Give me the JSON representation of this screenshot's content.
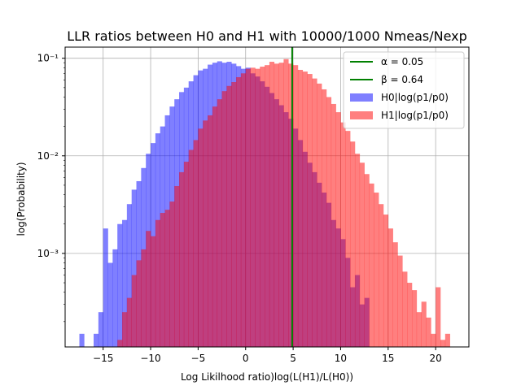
{
  "chart_data": {
    "type": "bar",
    "title": "LLR ratios between H0 and H1 with 10000/1000 Nmeas/Nexp",
    "xlabel": "Log Likilhood ratio)log(L(H1)/L(H0))",
    "ylabel": "log(Probability)",
    "xlim": [
      -19,
      23.5
    ],
    "ylim": [
      0.00011,
      0.13
    ],
    "y_scale": "log",
    "grid": true,
    "legend_position": "upper right",
    "x_ticks": [
      -15,
      -10,
      -5,
      0,
      5,
      10,
      15,
      20
    ],
    "x_tick_labels": [
      "−15",
      "−10",
      "−5",
      "0",
      "5",
      "10",
      "15",
      "20"
    ],
    "y_ticks": [
      0.001,
      0.01,
      0.1
    ],
    "y_tick_labels": [
      "10⁻³",
      "10⁻²",
      "10⁻¹"
    ],
    "threshold": 4.9,
    "legend": [
      {
        "label": "α = 0.05",
        "kind": "line",
        "color": "#008000"
      },
      {
        "label": "β = 0.64",
        "kind": "line",
        "color": "#008000"
      },
      {
        "label": "H0|log(p1/p0)",
        "kind": "patch",
        "color": "#7f7fff"
      },
      {
        "label": "H1|log(p1/p0)",
        "kind": "patch",
        "color": "#ff7f7f"
      }
    ],
    "series": [
      {
        "name": "H0|log(p1/p0)",
        "color": "blue",
        "alpha": 0.5,
        "bin_width": 0.5,
        "bins": [
          [
            -17.5,
            0.00015
          ],
          [
            -16.0,
            0.00015
          ],
          [
            -15.5,
            0.00025
          ],
          [
            -15.0,
            0.0018
          ],
          [
            -14.5,
            0.0008
          ],
          [
            -14.0,
            0.0011
          ],
          [
            -13.5,
            0.002
          ],
          [
            -13.0,
            0.0022
          ],
          [
            -12.5,
            0.0032
          ],
          [
            -12.0,
            0.0045
          ],
          [
            -11.5,
            0.0055
          ],
          [
            -11.0,
            0.0075
          ],
          [
            -10.5,
            0.0105
          ],
          [
            -10.0,
            0.0135
          ],
          [
            -9.5,
            0.017
          ],
          [
            -9.0,
            0.02
          ],
          [
            -8.5,
            0.026
          ],
          [
            -8.0,
            0.032
          ],
          [
            -7.5,
            0.038
          ],
          [
            -7.0,
            0.045
          ],
          [
            -6.5,
            0.05
          ],
          [
            -6.0,
            0.058
          ],
          [
            -5.5,
            0.067
          ],
          [
            -5.0,
            0.075
          ],
          [
            -4.5,
            0.078
          ],
          [
            -4.0,
            0.086
          ],
          [
            -3.5,
            0.09
          ],
          [
            -3.0,
            0.093
          ],
          [
            -2.5,
            0.09
          ],
          [
            -2.0,
            0.092
          ],
          [
            -1.5,
            0.088
          ],
          [
            -1.0,
            0.083
          ],
          [
            -0.5,
            0.078
          ],
          [
            0.0,
            0.08
          ],
          [
            0.5,
            0.07
          ],
          [
            1.0,
            0.065
          ],
          [
            1.5,
            0.058
          ],
          [
            2.0,
            0.051
          ],
          [
            2.5,
            0.044
          ],
          [
            3.0,
            0.038
          ],
          [
            3.5,
            0.033
          ],
          [
            4.0,
            0.028
          ],
          [
            4.5,
            0.024
          ],
          [
            5.0,
            0.019
          ],
          [
            5.5,
            0.0145
          ],
          [
            6.0,
            0.011
          ],
          [
            6.5,
            0.0085
          ],
          [
            7.0,
            0.0068
          ],
          [
            7.5,
            0.0053
          ],
          [
            8.0,
            0.0042
          ],
          [
            8.5,
            0.0033
          ],
          [
            9.0,
            0.0022
          ],
          [
            9.5,
            0.0018
          ],
          [
            10.0,
            0.0014
          ],
          [
            10.5,
            0.0009
          ],
          [
            11.0,
            0.00045
          ],
          [
            11.5,
            0.0006
          ],
          [
            12.0,
            0.0003
          ],
          [
            12.5,
            0.00035
          ]
        ]
      },
      {
        "name": "H1|log(p1/p0)",
        "color": "red",
        "alpha": 0.5,
        "bin_width": 0.5,
        "bins": [
          [
            -13.5,
            0.00013
          ],
          [
            -13.0,
            0.00025
          ],
          [
            -12.5,
            0.00035
          ],
          [
            -12.0,
            0.0006
          ],
          [
            -11.5,
            0.00085
          ],
          [
            -11.0,
            0.0011
          ],
          [
            -10.5,
            0.0017
          ],
          [
            -10.0,
            0.0015
          ],
          [
            -9.5,
            0.0022
          ],
          [
            -9.0,
            0.0026
          ],
          [
            -8.5,
            0.0028
          ],
          [
            -8.0,
            0.0034
          ],
          [
            -7.5,
            0.0049
          ],
          [
            -7.0,
            0.0068
          ],
          [
            -6.5,
            0.0087
          ],
          [
            -6.0,
            0.0115
          ],
          [
            -5.5,
            0.0145
          ],
          [
            -5.0,
            0.019
          ],
          [
            -4.5,
            0.023
          ],
          [
            -4.0,
            0.026
          ],
          [
            -3.5,
            0.032
          ],
          [
            -3.0,
            0.038
          ],
          [
            -2.5,
            0.046
          ],
          [
            -2.0,
            0.052
          ],
          [
            -1.5,
            0.057
          ],
          [
            -1.0,
            0.064
          ],
          [
            -0.5,
            0.07
          ],
          [
            0.0,
            0.078
          ],
          [
            0.5,
            0.08
          ],
          [
            1.0,
            0.078
          ],
          [
            1.5,
            0.082
          ],
          [
            2.0,
            0.085
          ],
          [
            2.5,
            0.092
          ],
          [
            3.0,
            0.088
          ],
          [
            3.5,
            0.09
          ],
          [
            4.0,
            0.098
          ],
          [
            4.5,
            0.088
          ],
          [
            5.0,
            0.085
          ],
          [
            5.5,
            0.076
          ],
          [
            6.0,
            0.073
          ],
          [
            6.5,
            0.069
          ],
          [
            7.0,
            0.062
          ],
          [
            7.5,
            0.055
          ],
          [
            8.0,
            0.048
          ],
          [
            8.5,
            0.04
          ],
          [
            9.0,
            0.034
          ],
          [
            9.5,
            0.028
          ],
          [
            10.0,
            0.022
          ],
          [
            10.5,
            0.018
          ],
          [
            11.0,
            0.014
          ],
          [
            11.5,
            0.0105
          ],
          [
            12.0,
            0.0085
          ],
          [
            12.5,
            0.0065
          ],
          [
            13.0,
            0.0052
          ],
          [
            13.5,
            0.0042
          ],
          [
            14.0,
            0.0032
          ],
          [
            14.5,
            0.0025
          ],
          [
            15.0,
            0.0018
          ],
          [
            15.5,
            0.0013
          ],
          [
            16.0,
            0.00095
          ],
          [
            16.5,
            0.00065
          ],
          [
            17.0,
            0.0005
          ],
          [
            17.5,
            0.00042
          ],
          [
            18.0,
            0.00025
          ],
          [
            18.5,
            0.00032
          ],
          [
            19.0,
            0.00022
          ],
          [
            19.5,
            0.00015
          ],
          [
            20.0,
            0.00045
          ],
          [
            20.5,
            0.00013
          ],
          [
            21.0,
            0.00015
          ]
        ]
      }
    ]
  }
}
